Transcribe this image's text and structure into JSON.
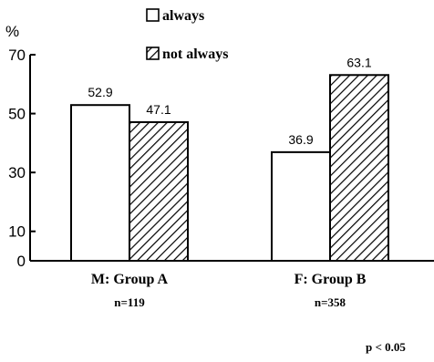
{
  "chart_data": {
    "type": "bar",
    "title": "",
    "xlabel": "",
    "ylabel": "%",
    "ylim": [
      0,
      70
    ],
    "yticks": [
      0,
      10,
      30,
      50,
      70
    ],
    "categories": [
      "M: Group A",
      "F: Group B"
    ],
    "category_notes": [
      "n=119",
      "n=358"
    ],
    "series": [
      {
        "name": "always",
        "values": [
          52.9,
          36.9
        ],
        "fill": "#ffffff",
        "pattern": "none"
      },
      {
        "name": "not always",
        "values": [
          47.1,
          63.1
        ],
        "fill": "#ffffff",
        "pattern": "diagonal-hatch"
      }
    ],
    "data_labels": [
      [
        "52.9",
        "36.9"
      ],
      [
        "47.1",
        "63.1"
      ]
    ],
    "legend_position": "top-center",
    "grid": false,
    "annotation": "p < 0.05"
  }
}
